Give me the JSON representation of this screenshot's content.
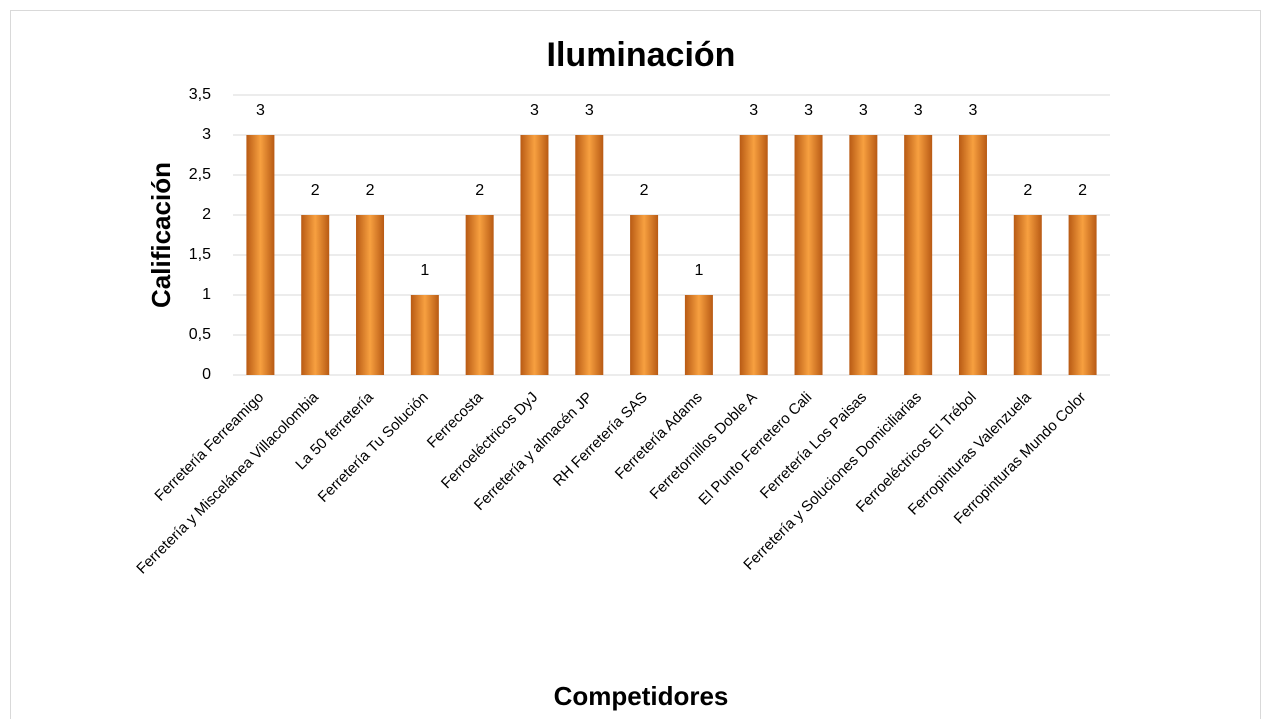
{
  "chart_data": {
    "type": "bar",
    "title": "Iluminación",
    "x_label": "Competidores",
    "y_label": "Calificación",
    "categories": [
      "Ferretería Ferreamigo",
      "Ferretería y Miscelánea Villacolombia",
      "La 50 ferretería",
      "Ferretería Tu Solución",
      "Ferrecosta",
      "Ferroeléctricos DyJ",
      "Ferretería y almacén JP",
      "RH Ferretería SAS",
      "Ferretería Adams",
      "Ferretornillos Doble A",
      "El Punto Ferretero Cali",
      "Ferretería Los Paisas",
      "Ferretería y Soluciones Domiciliarias",
      "Ferroeléctricos El Trébol",
      "Ferropinturas Valenzuela",
      "Ferropinturas Mundo Color"
    ],
    "values": [
      3,
      2,
      2,
      1,
      2,
      3,
      3,
      2,
      1,
      3,
      3,
      3,
      3,
      3,
      2,
      2
    ],
    "color": "#f7a040",
    "ylim": [
      0,
      3.5
    ],
    "yticks": [
      0,
      {
        "value": 0.5,
        "label": "0,5"
      },
      1,
      {
        "value": 1.5,
        "label": "1,5"
      },
      2,
      {
        "value": 2.5,
        "label": "2,5"
      },
      3,
      {
        "value": 3.5,
        "label": "3,5"
      }
    ],
    "grid": true
  }
}
